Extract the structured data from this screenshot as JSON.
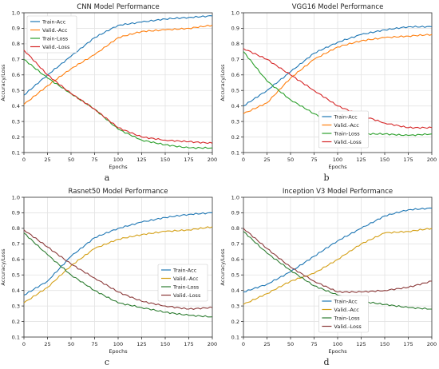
{
  "chart_data": [
    {
      "type": "line",
      "title": "CNN Model Performance",
      "xlabel": "Epochs",
      "ylabel": "Accuracy/Loss",
      "caption": "a",
      "xlim": [
        0,
        200
      ],
      "ylim": [
        0.1,
        1.0
      ],
      "xticks": [
        "0",
        "25",
        "50",
        "75",
        "100",
        "125",
        "150",
        "175",
        "200"
      ],
      "yticks": [
        "0.1",
        "0.2",
        "0.3",
        "0.4",
        "0.5",
        "0.6",
        "0.7",
        "0.8",
        "0.9",
        "1.0"
      ],
      "grid": true,
      "legend_position": "top-left",
      "x": [
        0,
        25,
        50,
        75,
        100,
        125,
        150,
        175,
        200
      ],
      "series": [
        {
          "name": "Train-Acc",
          "color": "#1f77b4",
          "values": [
            0.47,
            0.6,
            0.72,
            0.84,
            0.92,
            0.94,
            0.96,
            0.97,
            0.98
          ]
        },
        {
          "name": "Valid.-Acc",
          "color": "#ff7f0e",
          "values": [
            0.41,
            0.53,
            0.64,
            0.73,
            0.84,
            0.88,
            0.89,
            0.9,
            0.92
          ]
        },
        {
          "name": "Train-Loss",
          "color": "#2ca02c",
          "values": [
            0.7,
            0.58,
            0.48,
            0.38,
            0.25,
            0.18,
            0.15,
            0.13,
            0.13
          ]
        },
        {
          "name": "Valid.-Loss",
          "color": "#d62728",
          "values": [
            0.76,
            0.6,
            0.48,
            0.38,
            0.26,
            0.2,
            0.18,
            0.17,
            0.16
          ]
        }
      ]
    },
    {
      "type": "line",
      "title": "VGG16 Model Performance",
      "xlabel": "Epochs",
      "ylabel": "Accuracy/Loss",
      "caption": "b",
      "xlim": [
        0,
        200
      ],
      "ylim": [
        0.1,
        1.0
      ],
      "xticks": [
        "0",
        "25",
        "50",
        "75",
        "100",
        "125",
        "150",
        "175",
        "200"
      ],
      "yticks": [
        "0.1",
        "0.2",
        "0.3",
        "0.4",
        "0.5",
        "0.6",
        "0.7",
        "0.8",
        "0.9",
        "1.0"
      ],
      "grid": true,
      "legend_position": "bottom-center",
      "x": [
        0,
        25,
        50,
        75,
        100,
        125,
        150,
        175,
        200
      ],
      "series": [
        {
          "name": "Train-Acc",
          "color": "#1f77b4",
          "values": [
            0.4,
            0.5,
            0.62,
            0.74,
            0.81,
            0.86,
            0.89,
            0.91,
            0.91
          ]
        },
        {
          "name": "Valid.-Acc",
          "color": "#ff7f0e",
          "values": [
            0.35,
            0.42,
            0.58,
            0.7,
            0.78,
            0.82,
            0.84,
            0.85,
            0.86
          ]
        },
        {
          "name": "Train-Loss",
          "color": "#2ca02c",
          "values": [
            0.75,
            0.56,
            0.44,
            0.35,
            0.28,
            0.22,
            0.22,
            0.21,
            0.22
          ]
        },
        {
          "name": "Valid.-Loss",
          "color": "#d62728",
          "values": [
            0.77,
            0.7,
            0.6,
            0.5,
            0.4,
            0.34,
            0.29,
            0.26,
            0.26
          ]
        }
      ]
    },
    {
      "type": "line",
      "title": "Rasnet50 Model Performance",
      "xlabel": "Epochs",
      "ylabel": "Accuracy/Loss",
      "caption": "c",
      "xlim": [
        0,
        200
      ],
      "ylim": [
        0.1,
        1.0
      ],
      "xticks": [
        "0",
        "25",
        "50",
        "75",
        "100",
        "125",
        "150",
        "175",
        "200"
      ],
      "yticks": [
        "0.1",
        "0.2",
        "0.3",
        "0.4",
        "0.5",
        "0.6",
        "0.7",
        "0.8",
        "0.9",
        "1.0"
      ],
      "grid": true,
      "legend_position": "center-right",
      "x": [
        0,
        25,
        50,
        75,
        100,
        125,
        150,
        175,
        200
      ],
      "series": [
        {
          "name": "Train-Acc",
          "color": "#1f77b4",
          "values": [
            0.37,
            0.46,
            0.62,
            0.74,
            0.8,
            0.84,
            0.87,
            0.89,
            0.9
          ]
        },
        {
          "name": "Valid.-Acc",
          "color": "#d4a017",
          "values": [
            0.32,
            0.42,
            0.56,
            0.67,
            0.73,
            0.76,
            0.78,
            0.79,
            0.81
          ]
        },
        {
          "name": "Train-Loss",
          "color": "#2e7d32",
          "values": [
            0.77,
            0.63,
            0.5,
            0.4,
            0.32,
            0.29,
            0.26,
            0.24,
            0.23
          ]
        },
        {
          "name": "Valid.-Loss",
          "color": "#8b3a3a",
          "values": [
            0.79,
            0.68,
            0.57,
            0.48,
            0.39,
            0.33,
            0.3,
            0.28,
            0.29
          ]
        }
      ]
    },
    {
      "type": "line",
      "title": "Inception V3 Model Performance",
      "xlabel": "Epochs",
      "ylabel": "Accuracy/Loss",
      "caption": "d",
      "xlim": [
        0,
        200
      ],
      "ylim": [
        0.1,
        1.0
      ],
      "xticks": [
        "0",
        "25",
        "50",
        "75",
        "100",
        "125",
        "150",
        "175",
        "200"
      ],
      "yticks": [
        "0.1",
        "0.2",
        "0.3",
        "0.4",
        "0.5",
        "0.6",
        "0.7",
        "0.8",
        "0.9",
        "1.0"
      ],
      "grid": true,
      "legend_position": "bottom-center",
      "x": [
        0,
        25,
        50,
        75,
        100,
        125,
        150,
        175,
        200
      ],
      "series": [
        {
          "name": "Train-Acc",
          "color": "#1f77b4",
          "values": [
            0.39,
            0.44,
            0.52,
            0.62,
            0.72,
            0.8,
            0.88,
            0.92,
            0.93
          ]
        },
        {
          "name": "Valid.-Acc",
          "color": "#d4a017",
          "values": [
            0.31,
            0.38,
            0.46,
            0.51,
            0.6,
            0.7,
            0.77,
            0.78,
            0.8
          ]
        },
        {
          "name": "Train-Loss",
          "color": "#2e7d32",
          "values": [
            0.78,
            0.64,
            0.53,
            0.43,
            0.37,
            0.33,
            0.31,
            0.29,
            0.28
          ]
        },
        {
          "name": "Valid.-Loss",
          "color": "#8b3a3a",
          "values": [
            0.8,
            0.67,
            0.55,
            0.46,
            0.39,
            0.39,
            0.4,
            0.42,
            0.46
          ]
        }
      ]
    }
  ]
}
